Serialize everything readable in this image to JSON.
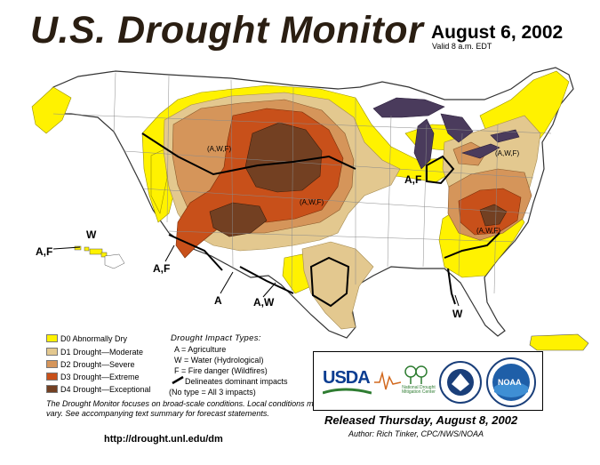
{
  "header": {
    "title": "U.S. Drought Monitor",
    "date": "August 6, 2002",
    "valid": "Valid 8 a.m. EDT"
  },
  "colors": {
    "D0": "#fff200",
    "D1": "#e3c88f",
    "D2": "#d5955a",
    "D3": "#c8501a",
    "D4": "#734022",
    "lakes": "#4a3b5c",
    "boundary": "#000000"
  },
  "legend": {
    "items": [
      {
        "key": "D0",
        "label": "D0 Abnormally Dry"
      },
      {
        "key": "D1",
        "label": "D1 Drought—Moderate"
      },
      {
        "key": "D2",
        "label": "D2 Drought—Severe"
      },
      {
        "key": "D3",
        "label": "D3 Drought—Extreme"
      },
      {
        "key": "D4",
        "label": "D4 Drought—Exceptional"
      }
    ]
  },
  "impacts": {
    "heading": "Drought Impact Types:",
    "lines": [
      "A = Agriculture",
      "W = Water (Hydrological)",
      "F = Fire danger (Wildfires)",
      "Delineates dominant impacts",
      "(No type = All 3 impacts)"
    ]
  },
  "map_labels": {
    "hawaii_af": "A,F",
    "hawaii_w": "W",
    "sw_af": "A,F",
    "sw_a": "A",
    "sw_aw": "A,W",
    "se_w": "W",
    "midwest_af": "A,F",
    "north_awf": "(A,W,F)",
    "central_awf": "(A,W,F)",
    "northeast_awf": "(A,W,F)",
    "carolinas_awf": "(A,W,F)"
  },
  "footer": {
    "note": "The Drought Monitor focuses on broad-scale conditions. Local conditions may vary. See accompanying text summary for forecast statements.",
    "url": "http://drought.unl.edu/dm",
    "released": "Released Thursday, August 8, 2002",
    "author": "Author:  Rich Tinker, CPC/NWS/NOAA"
  },
  "logos": {
    "usda": "USDA",
    "ndmc": "National Drought Mitigation Center",
    "noaa": "NOAA"
  }
}
